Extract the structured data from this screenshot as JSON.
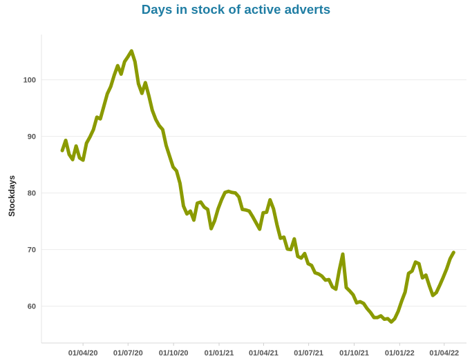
{
  "chart_data": {
    "type": "line",
    "title": "Days in stock of active adverts",
    "xlabel": "",
    "ylabel": "Stockdays",
    "x_tick_labels": [
      "01/04/20",
      "01/07/20",
      "01/10/20",
      "01/01/21",
      "01/04/21",
      "01/07/21",
      "01/10/21",
      "01/01/22",
      "01/04/22"
    ],
    "y_ticks": [
      60,
      70,
      80,
      90,
      100
    ],
    "ylim": [
      53.5,
      108
    ],
    "xlim": [
      "2020-01-08",
      "2022-05-16"
    ],
    "grid": true,
    "series": [
      {
        "color": "#8a9a00",
        "x": [
          "2020-02-19",
          "2020-02-26",
          "2020-03-04",
          "2020-03-11",
          "2020-03-18",
          "2020-03-25",
          "2020-04-01",
          "2020-04-08",
          "2020-04-15",
          "2020-04-22",
          "2020-04-29",
          "2020-05-06",
          "2020-05-13",
          "2020-05-20",
          "2020-05-27",
          "2020-06-03",
          "2020-06-10",
          "2020-06-17",
          "2020-06-24",
          "2020-07-01",
          "2020-07-08",
          "2020-07-15",
          "2020-07-22",
          "2020-07-29",
          "2020-08-05",
          "2020-08-12",
          "2020-08-19",
          "2020-08-26",
          "2020-09-02",
          "2020-09-09",
          "2020-09-16",
          "2020-09-23",
          "2020-09-30",
          "2020-10-07",
          "2020-10-14",
          "2020-10-21",
          "2020-10-28",
          "2020-11-04",
          "2020-11-11",
          "2020-11-18",
          "2020-11-25",
          "2020-12-02",
          "2020-12-09",
          "2020-12-16",
          "2020-12-23",
          "2020-12-30",
          "2021-01-06",
          "2021-01-13",
          "2021-01-20",
          "2021-01-27",
          "2021-02-03",
          "2021-02-10",
          "2021-02-17",
          "2021-02-24",
          "2021-03-03",
          "2021-03-10",
          "2021-03-17",
          "2021-03-24",
          "2021-03-31",
          "2021-04-07",
          "2021-04-14",
          "2021-04-21",
          "2021-04-28",
          "2021-05-05",
          "2021-05-12",
          "2021-05-19",
          "2021-05-26",
          "2021-06-02",
          "2021-06-09",
          "2021-06-16",
          "2021-06-23",
          "2021-06-30",
          "2021-07-07",
          "2021-07-14",
          "2021-07-21",
          "2021-07-28",
          "2021-08-04",
          "2021-08-11",
          "2021-08-18",
          "2021-08-25",
          "2021-09-01",
          "2021-09-08",
          "2021-09-15",
          "2021-09-22",
          "2021-09-29",
          "2021-10-06",
          "2021-10-13",
          "2021-10-20",
          "2021-10-27",
          "2021-11-03",
          "2021-11-10",
          "2021-11-17",
          "2021-11-24",
          "2021-12-01",
          "2021-12-08",
          "2021-12-15",
          "2021-12-22",
          "2021-12-29",
          "2022-01-05",
          "2022-01-12",
          "2022-01-19",
          "2022-01-26",
          "2022-02-02",
          "2022-02-09",
          "2022-02-16",
          "2022-02-23",
          "2022-03-02",
          "2022-03-09",
          "2022-03-16",
          "2022-03-23",
          "2022-03-30",
          "2022-04-06",
          "2022-04-13",
          "2022-04-20"
        ],
        "y": [
          87.5,
          89.3,
          86.8,
          85.9,
          88.3,
          86.2,
          85.8,
          88.8,
          89.9,
          91.2,
          93.4,
          93.1,
          95.3,
          97.5,
          98.8,
          100.8,
          102.5,
          101,
          103.2,
          104.1,
          105.1,
          103.2,
          99.3,
          97.6,
          99.5,
          97.2,
          94.6,
          93,
          91.9,
          91.2,
          88.4,
          86.5,
          84.6,
          83.9,
          81.7,
          77.7,
          76.3,
          76.8,
          75.2,
          78.2,
          78.4,
          77.5,
          77.1,
          73.7,
          75.1,
          77.2,
          78.8,
          80.1,
          80.3,
          80.1,
          80,
          79.3,
          77.1,
          77,
          76.8,
          75.8,
          74.7,
          73.6,
          76.5,
          76.6,
          78.8,
          77.2,
          74.4,
          72,
          72.2,
          70.1,
          70,
          71.9,
          68.8,
          68.5,
          69.3,
          67.5,
          67.2,
          65.9,
          65.7,
          65.3,
          64.6,
          64.7,
          63.4,
          63,
          66.4,
          69.2,
          63.3,
          62.7,
          62,
          60.6,
          60.8,
          60.5,
          59.6,
          58.9,
          58,
          58,
          58.3,
          57.7,
          57.8,
          57.2,
          57.8,
          59.1,
          60.9,
          62.5,
          65.8,
          66.2,
          67.8,
          67.5,
          65,
          65.5,
          63.6,
          61.9,
          62.4,
          63.7,
          65.1,
          66.6,
          68.4,
          69.5
        ]
      }
    ]
  }
}
